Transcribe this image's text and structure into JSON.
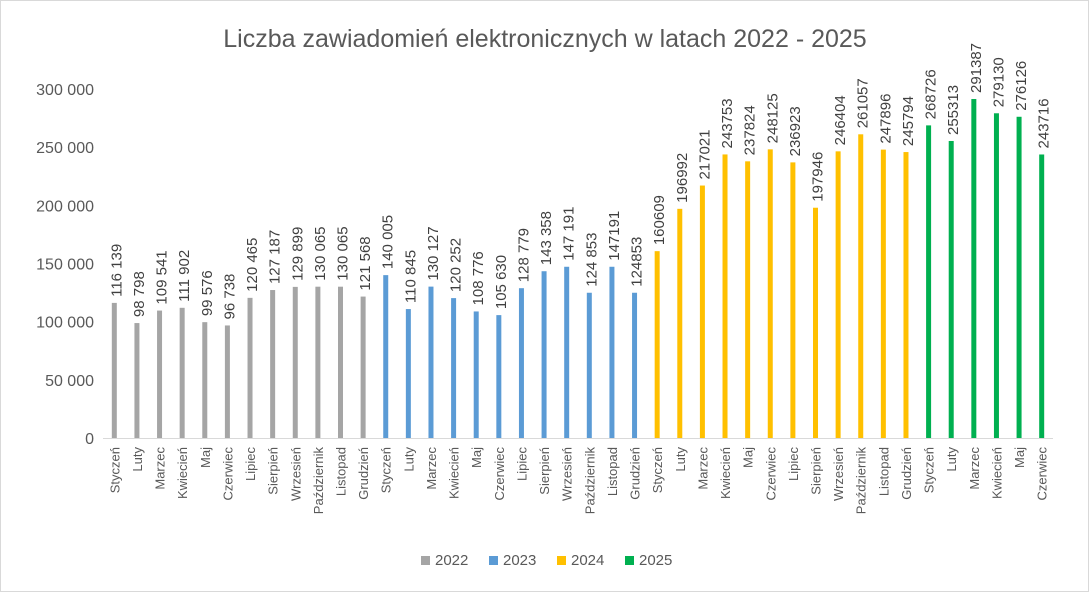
{
  "chart_data": {
    "type": "bar",
    "title": "Liczba zawiadomień elektronicznych  w latach 2022 - 2025",
    "ylim": [
      0,
      300000
    ],
    "yticks": [
      0,
      50000,
      100000,
      150000,
      200000,
      250000,
      300000
    ],
    "ytick_labels": [
      "0",
      "50 000",
      "100 000",
      "150 000",
      "200 000",
      "250 000",
      "300 000"
    ],
    "grid": false,
    "legend_position": "bottom",
    "series": [
      {
        "name": "2022",
        "color": "#a5a5a5",
        "categories": [
          "Styczeń",
          "Luty",
          "Marzec",
          "Kwiecień",
          "Maj",
          "Czerwiec",
          "Lipiec",
          "Sierpień",
          "Wrzesień",
          "Październik",
          "Listopad",
          "Grudzień"
        ],
        "values": [
          116139,
          98798,
          109541,
          111902,
          99576,
          96738,
          120465,
          127187,
          129899,
          130065,
          130065,
          121568
        ],
        "labels": [
          "116 139",
          "98 798",
          "109 541",
          "111 902",
          "99 576",
          "96 738",
          "120 465",
          "127 187",
          "129 899",
          "130 065",
          "130 065",
          "121 568"
        ]
      },
      {
        "name": "2023",
        "color": "#5b9bd5",
        "categories": [
          "Styczeń",
          "Luty",
          "Marzec",
          "Kwiecień",
          "Maj",
          "Czerwiec",
          "Lipiec",
          "Sierpień",
          "Wrzesień",
          "Październik",
          "Listopad",
          "Grudzień"
        ],
        "values": [
          140005,
          110845,
          130127,
          120252,
          108776,
          105630,
          128779,
          143358,
          147191,
          124853,
          147191,
          124853
        ],
        "labels": [
          "140 005",
          "110 845",
          "130 127",
          "120 252",
          "108 776",
          "105 630",
          "128 779",
          "143 358",
          "147 191",
          "124 853",
          "147191",
          "124853"
        ]
      },
      {
        "name": "2024",
        "color": "#ffc000",
        "categories": [
          "Styczeń",
          "Luty",
          "Marzec",
          "Kwiecień",
          "Maj",
          "Czerwiec",
          "Lipiec",
          "Sierpień",
          "Wrzesień",
          "Październik",
          "Listopad",
          "Grudzień"
        ],
        "values": [
          160609,
          196992,
          217021,
          243753,
          237824,
          248125,
          236923,
          197946,
          246404,
          261057,
          247896,
          245794
        ],
        "labels": [
          "160609",
          "196992",
          "217021",
          "243753",
          "237824",
          "248125",
          "236923",
          "197946",
          "246404",
          "261057",
          "247896",
          "245794"
        ]
      },
      {
        "name": "2025",
        "color": "#00b050",
        "categories": [
          "Styczeń",
          "Luty",
          "Marzec",
          "Kwiecień",
          "Maj",
          "Czerwiec"
        ],
        "values": [
          268726,
          255313,
          291387,
          279130,
          276126,
          243716
        ],
        "labels": [
          "268726",
          "255313",
          "291387",
          "279130",
          "276126",
          "243716"
        ]
      }
    ]
  }
}
